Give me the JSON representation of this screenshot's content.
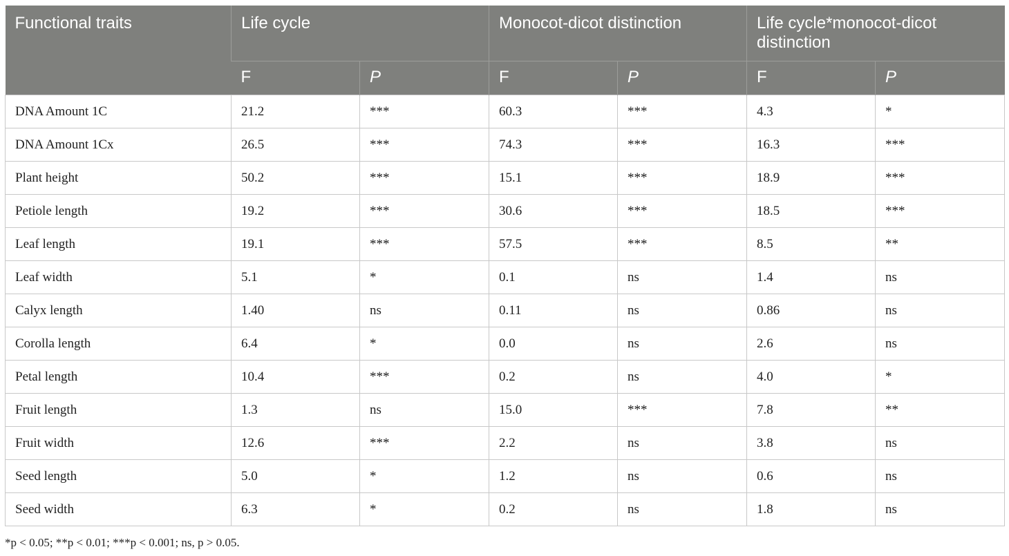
{
  "table": {
    "headers": {
      "traits": "Functional traits",
      "group1": "Life cycle",
      "group2": "Monocot-dicot distinction",
      "group3": "Life cycle*monocot-dicot distinction",
      "f": "F",
      "p": "P"
    },
    "rows": [
      [
        "DNA Amount 1C",
        "21.2",
        "***",
        "60.3",
        "***",
        "4.3",
        "*"
      ],
      [
        "DNA Amount 1Cx",
        "26.5",
        "***",
        "74.3",
        "***",
        "16.3",
        "***"
      ],
      [
        "Plant height",
        "50.2",
        "***",
        "15.1",
        "***",
        "18.9",
        "***"
      ],
      [
        "Petiole length",
        "19.2",
        "***",
        "30.6",
        "***",
        "18.5",
        "***"
      ],
      [
        "Leaf length",
        "19.1",
        "***",
        "57.5",
        "***",
        "8.5",
        "**"
      ],
      [
        "Leaf width",
        "5.1",
        "*",
        "0.1",
        "ns",
        "1.4",
        "ns"
      ],
      [
        "Calyx length",
        "1.40",
        "ns",
        "0.11",
        "ns",
        "0.86",
        "ns"
      ],
      [
        "Corolla length",
        "6.4",
        "*",
        "0.0",
        "ns",
        "2.6",
        "ns"
      ],
      [
        "Petal length",
        "10.4",
        "***",
        "0.2",
        "ns",
        "4.0",
        "*"
      ],
      [
        "Fruit length",
        "1.3",
        "ns",
        "15.0",
        "***",
        "7.8",
        "**"
      ],
      [
        "Fruit width",
        "12.6",
        "***",
        "2.2",
        "ns",
        "3.8",
        "ns"
      ],
      [
        "Seed length",
        "5.0",
        "*",
        "1.2",
        "ns",
        "0.6",
        "ns"
      ],
      [
        "Seed width",
        "6.3",
        "*",
        "0.2",
        "ns",
        "1.8",
        "ns"
      ]
    ]
  },
  "footnote": "*p < 0.05; **p < 0.01; ***p < 0.001; ns, p > 0.05."
}
